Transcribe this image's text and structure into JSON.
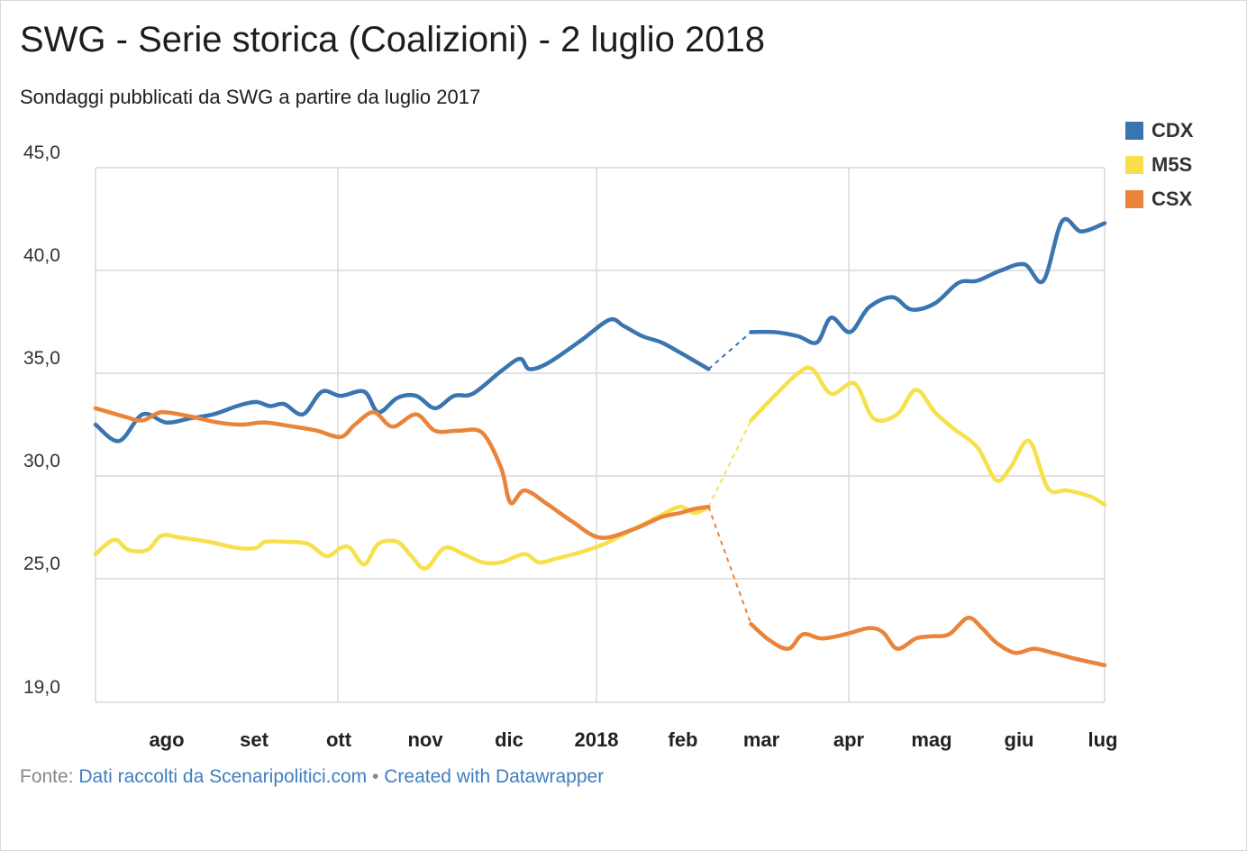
{
  "title": "SWG - Serie storica (Coalizioni) - 2 luglio 2018",
  "subtitle": "Sondaggi pubblicati da SWG a partire da luglio 2017",
  "footer": {
    "prefix": "Fonte:",
    "source_link": "Dati raccolti da Scenaripolitici.com",
    "separator": "•",
    "credit_link": "Created with Datawrapper"
  },
  "chart_data": {
    "type": "line",
    "y_ticks": [
      "45,0",
      "40,0",
      "35,0",
      "30,0",
      "25,0",
      "19,0"
    ],
    "ylim": [
      19,
      45
    ],
    "x_ticks": [
      "ago",
      "set",
      "ott",
      "nov",
      "dic",
      "2018",
      "feb",
      "mar",
      "apr",
      "mag",
      "giu",
      "lug"
    ],
    "legend_position": "top-right",
    "gap_note": "dashed segment between late feb and early mar",
    "series": [
      {
        "name": "CDX",
        "color": "#3a75b0",
        "points": [
          [
            0.0,
            32.5
          ],
          [
            0.25,
            31.7
          ],
          [
            0.5,
            33.0
          ],
          [
            0.75,
            32.6
          ],
          [
            1.0,
            32.8
          ],
          [
            1.25,
            33.0
          ],
          [
            1.5,
            33.4
          ],
          [
            1.7,
            33.6
          ],
          [
            1.85,
            33.4
          ],
          [
            2.0,
            33.5
          ],
          [
            2.2,
            33.0
          ],
          [
            2.4,
            34.1
          ],
          [
            2.6,
            33.9
          ],
          [
            2.85,
            34.1
          ],
          [
            3.0,
            33.1
          ],
          [
            3.2,
            33.8
          ],
          [
            3.4,
            33.9
          ],
          [
            3.6,
            33.3
          ],
          [
            3.8,
            33.9
          ],
          [
            4.0,
            34.0
          ],
          [
            4.3,
            35.1
          ],
          [
            4.5,
            35.7
          ],
          [
            4.6,
            35.2
          ],
          [
            4.8,
            35.5
          ],
          [
            5.15,
            36.6
          ],
          [
            5.45,
            37.6
          ],
          [
            5.6,
            37.3
          ],
          [
            5.8,
            36.8
          ],
          [
            6.0,
            36.5
          ],
          [
            6.2,
            36.0
          ],
          [
            6.5,
            35.2
          ],
          [
            6.95,
            37.0
          ],
          [
            7.2,
            37.0
          ],
          [
            7.45,
            36.8
          ],
          [
            7.65,
            36.5
          ],
          [
            7.8,
            37.7
          ],
          [
            8.0,
            37.0
          ],
          [
            8.2,
            38.2
          ],
          [
            8.45,
            38.7
          ],
          [
            8.65,
            38.1
          ],
          [
            8.9,
            38.4
          ],
          [
            9.15,
            39.4
          ],
          [
            9.35,
            39.5
          ],
          [
            9.6,
            40.0
          ],
          [
            9.85,
            40.3
          ],
          [
            10.05,
            39.5
          ],
          [
            10.25,
            42.4
          ],
          [
            10.45,
            41.9
          ],
          [
            10.7,
            42.3
          ]
        ]
      },
      {
        "name": "M5S",
        "color": "#f7e04b",
        "points": [
          [
            0.0,
            26.2
          ],
          [
            0.2,
            26.9
          ],
          [
            0.35,
            26.4
          ],
          [
            0.55,
            26.4
          ],
          [
            0.7,
            27.1
          ],
          [
            0.9,
            27.0
          ],
          [
            1.2,
            26.8
          ],
          [
            1.5,
            26.5
          ],
          [
            1.7,
            26.5
          ],
          [
            1.8,
            26.8
          ],
          [
            2.0,
            26.8
          ],
          [
            2.25,
            26.7
          ],
          [
            2.45,
            26.1
          ],
          [
            2.6,
            26.5
          ],
          [
            2.7,
            26.5
          ],
          [
            2.85,
            25.7
          ],
          [
            3.0,
            26.7
          ],
          [
            3.2,
            26.8
          ],
          [
            3.35,
            26.1
          ],
          [
            3.5,
            25.5
          ],
          [
            3.7,
            26.5
          ],
          [
            3.9,
            26.2
          ],
          [
            4.1,
            25.8
          ],
          [
            4.3,
            25.8
          ],
          [
            4.55,
            26.2
          ],
          [
            4.7,
            25.8
          ],
          [
            4.9,
            26.0
          ],
          [
            5.15,
            26.3
          ],
          [
            5.4,
            26.7
          ],
          [
            5.7,
            27.4
          ],
          [
            6.0,
            28.1
          ],
          [
            6.2,
            28.5
          ],
          [
            6.35,
            28.2
          ],
          [
            6.5,
            28.5
          ],
          [
            6.95,
            32.7
          ],
          [
            7.2,
            33.9
          ],
          [
            7.45,
            35.0
          ],
          [
            7.6,
            35.2
          ],
          [
            7.8,
            34.0
          ],
          [
            8.05,
            34.5
          ],
          [
            8.25,
            32.8
          ],
          [
            8.5,
            33.0
          ],
          [
            8.7,
            34.2
          ],
          [
            8.9,
            33.1
          ],
          [
            9.1,
            32.3
          ],
          [
            9.35,
            31.4
          ],
          [
            9.55,
            29.8
          ],
          [
            9.7,
            30.4
          ],
          [
            9.9,
            31.7
          ],
          [
            10.1,
            29.4
          ],
          [
            10.3,
            29.3
          ],
          [
            10.55,
            29.0
          ],
          [
            10.7,
            28.6
          ]
        ]
      },
      {
        "name": "CSX",
        "color": "#e9843a",
        "points": [
          [
            0.0,
            33.3
          ],
          [
            0.3,
            32.9
          ],
          [
            0.5,
            32.7
          ],
          [
            0.7,
            33.1
          ],
          [
            1.0,
            32.9
          ],
          [
            1.3,
            32.6
          ],
          [
            1.55,
            32.5
          ],
          [
            1.8,
            32.6
          ],
          [
            2.1,
            32.4
          ],
          [
            2.35,
            32.2
          ],
          [
            2.6,
            31.9
          ],
          [
            2.75,
            32.5
          ],
          [
            2.95,
            33.1
          ],
          [
            3.15,
            32.4
          ],
          [
            3.4,
            33.0
          ],
          [
            3.6,
            32.2
          ],
          [
            3.85,
            32.2
          ],
          [
            4.1,
            32.1
          ],
          [
            4.3,
            30.4
          ],
          [
            4.4,
            28.7
          ],
          [
            4.55,
            29.3
          ],
          [
            4.8,
            28.6
          ],
          [
            5.05,
            27.8
          ],
          [
            5.35,
            27.0
          ],
          [
            5.7,
            27.4
          ],
          [
            6.0,
            28.0
          ],
          [
            6.2,
            28.2
          ],
          [
            6.35,
            28.4
          ],
          [
            6.5,
            28.5
          ],
          [
            6.95,
            22.8
          ],
          [
            7.15,
            22.0
          ],
          [
            7.35,
            21.6
          ],
          [
            7.5,
            22.3
          ],
          [
            7.7,
            22.1
          ],
          [
            7.95,
            22.3
          ],
          [
            8.2,
            22.6
          ],
          [
            8.35,
            22.4
          ],
          [
            8.5,
            21.6
          ],
          [
            8.7,
            22.1
          ],
          [
            8.85,
            22.2
          ],
          [
            9.05,
            22.3
          ],
          [
            9.25,
            23.1
          ],
          [
            9.4,
            22.6
          ],
          [
            9.55,
            21.9
          ],
          [
            9.75,
            21.4
          ],
          [
            9.95,
            21.6
          ],
          [
            10.15,
            21.4
          ],
          [
            10.4,
            21.1
          ],
          [
            10.7,
            20.8
          ]
        ]
      }
    ]
  }
}
